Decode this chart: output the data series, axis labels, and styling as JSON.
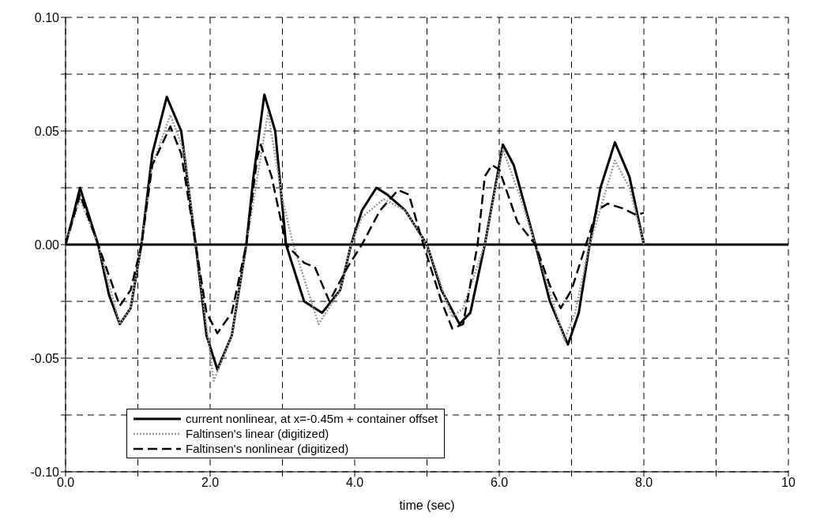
{
  "chart_data": {
    "type": "line",
    "xlabel": "time (sec)",
    "xlim": [
      0,
      10
    ],
    "xticks": [
      {
        "value": 0,
        "label": "0.0"
      },
      {
        "value": 1,
        "label": null
      },
      {
        "value": 2,
        "label": "2.0"
      },
      {
        "value": 3,
        "label": null
      },
      {
        "value": 4,
        "label": "4.0"
      },
      {
        "value": 5,
        "label": null
      },
      {
        "value": 6,
        "label": "6.0"
      },
      {
        "value": 7,
        "label": null
      },
      {
        "value": 8,
        "label": "8.0"
      },
      {
        "value": 9,
        "label": null
      },
      10
    ],
    "ylim": [
      -0.1,
      0.1
    ],
    "yticks": [
      {
        "value": -0.1,
        "label": "-0.10"
      },
      {
        "value": -0.075,
        "label": null
      },
      {
        "value": -0.05,
        "label": "-0.05"
      },
      {
        "value": -0.025,
        "label": null
      },
      {
        "value": 0,
        "label": "0.00"
      },
      {
        "value": 0.025,
        "label": null
      },
      {
        "value": 0.05,
        "label": "0.05"
      },
      {
        "value": 0.075,
        "label": null
      },
      {
        "value": 0.1,
        "label": "0.10"
      }
    ],
    "grid": true,
    "legend": "bottom left",
    "marker": "none",
    "ref_lines": [
      {
        "axis": "y",
        "value": 0,
        "label": null,
        "color": "#000000",
        "line_style": "solid"
      }
    ],
    "series": [
      {
        "name": "current nonlinear, at x=-0.45m + container offset",
        "color": "#000000",
        "line_style": "solid",
        "x": [
          0,
          0.1,
          0.2,
          0.3,
          0.45,
          0.6,
          0.75,
          0.9,
          1.05,
          1.2,
          1.4,
          1.6,
          1.8,
          1.95,
          2.1,
          2.3,
          2.5,
          2.6,
          2.75,
          2.9,
          3.05,
          3.3,
          3.55,
          3.8,
          3.95,
          4.1,
          4.3,
          4.45,
          4.7,
          5.0,
          5.2,
          5.45,
          5.6,
          5.8,
          6.05,
          6.2,
          6.5,
          6.7,
          6.95,
          7.1,
          7.25,
          7.4,
          7.6,
          7.8,
          8.0
        ],
        "values": [
          0,
          0.012,
          0.025,
          0.015,
          0,
          -0.022,
          -0.035,
          -0.028,
          0,
          0.04,
          0.065,
          0.05,
          0,
          -0.04,
          -0.055,
          -0.04,
          0,
          0.03,
          0.066,
          0.05,
          0,
          -0.025,
          -0.03,
          -0.02,
          0,
          0.015,
          0.025,
          0.022,
          0.015,
          0,
          -0.02,
          -0.035,
          -0.03,
          0,
          0.044,
          0.035,
          0,
          -0.025,
          -0.044,
          -0.03,
          0,
          0.025,
          0.045,
          0.03,
          0
        ]
      },
      {
        "name": "Faltinsen's linear (digitized)",
        "color": "#999999",
        "line_style": "dotted",
        "x": [
          0,
          0.2,
          0.45,
          0.75,
          0.9,
          1.05,
          1.2,
          1.45,
          1.65,
          1.8,
          2.05,
          2.3,
          2.5,
          2.8,
          3.0,
          3.15,
          3.5,
          3.8,
          3.95,
          4.1,
          4.4,
          4.7,
          5.0,
          5.35,
          5.5,
          5.8,
          6.05,
          6.3,
          6.5,
          6.9,
          7.05,
          7.25,
          7.6,
          7.8,
          8.0
        ],
        "values": [
          0,
          0.02,
          0,
          -0.035,
          -0.028,
          0,
          0.035,
          0.057,
          0.04,
          0,
          -0.06,
          -0.04,
          0,
          0.058,
          0.02,
          0,
          -0.035,
          -0.02,
          0,
          0.012,
          0.02,
          0.015,
          0,
          -0.032,
          -0.028,
          0,
          0.042,
          0.02,
          0,
          -0.042,
          -0.03,
          0,
          0.037,
          0.025,
          0
        ]
      },
      {
        "name": "Faltinsen's nonlinear (digitized)",
        "color": "#000000",
        "line_style": "dashed",
        "x": [
          0,
          0.2,
          0.45,
          0.75,
          0.9,
          1.05,
          1.2,
          1.45,
          1.6,
          1.8,
          1.95,
          2.1,
          2.3,
          2.5,
          2.65,
          2.7,
          2.85,
          3.05,
          3.3,
          3.45,
          3.65,
          3.9,
          4.1,
          4.35,
          4.6,
          4.75,
          4.95,
          5.2,
          5.35,
          5.5,
          5.7,
          5.8,
          5.9,
          6.0,
          6.25,
          6.5,
          6.7,
          6.85,
          7.0,
          7.2,
          7.35,
          7.5,
          7.7,
          7.9,
          8.0
        ],
        "values": [
          0,
          0.022,
          0,
          -0.027,
          -0.02,
          0,
          0.035,
          0.052,
          0.04,
          0,
          -0.03,
          -0.039,
          -0.03,
          0,
          0.038,
          0.044,
          0.03,
          0,
          -0.008,
          -0.01,
          -0.025,
          -0.01,
          0,
          0.015,
          0.024,
          0.022,
          0,
          -0.025,
          -0.037,
          -0.035,
          0,
          0.03,
          0.035,
          0.033,
          0.01,
          0,
          -0.018,
          -0.028,
          -0.02,
          0,
          0.015,
          0.018,
          0.016,
          0.013,
          0.014
        ]
      }
    ]
  }
}
